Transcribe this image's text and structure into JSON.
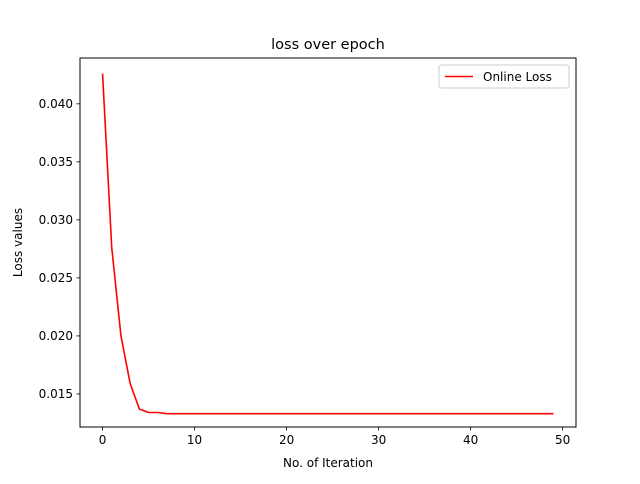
{
  "chart_data": {
    "type": "line",
    "title": "loss over epoch",
    "xlabel": "No. of Iteration",
    "ylabel": "Loss values",
    "xlim": [
      -2.45,
      51.45
    ],
    "ylim": [
      0.01215,
      0.04395
    ],
    "xticks": [
      0,
      10,
      20,
      30,
      40,
      50
    ],
    "xtick_labels": [
      "0",
      "10",
      "20",
      "30",
      "40",
      "50"
    ],
    "yticks": [
      0.015,
      0.02,
      0.025,
      0.03,
      0.035,
      0.04
    ],
    "ytick_labels": [
      "0.015",
      "0.020",
      "0.025",
      "0.030",
      "0.035",
      "0.040"
    ],
    "grid": false,
    "legend_position": "top-right",
    "series": [
      {
        "name": "Online Loss",
        "color": "#ff0000",
        "x": [
          0,
          1,
          2,
          3,
          4,
          5,
          6,
          7,
          8,
          9,
          10,
          11,
          12,
          13,
          14,
          15,
          16,
          17,
          18,
          19,
          20,
          21,
          22,
          23,
          24,
          25,
          26,
          27,
          28,
          29,
          30,
          31,
          32,
          33,
          34,
          35,
          36,
          37,
          38,
          39,
          40,
          41,
          42,
          43,
          44,
          45,
          46,
          47,
          48,
          49
        ],
        "y": [
          0.0426,
          0.0276,
          0.02,
          0.0159,
          0.0137,
          0.0134,
          0.0134,
          0.0133,
          0.0133,
          0.0133,
          0.0133,
          0.0133,
          0.0133,
          0.0133,
          0.0133,
          0.0133,
          0.0133,
          0.0133,
          0.0133,
          0.0133,
          0.0133,
          0.0133,
          0.0133,
          0.0133,
          0.0133,
          0.0133,
          0.0133,
          0.0133,
          0.0133,
          0.0133,
          0.0133,
          0.0133,
          0.0133,
          0.0133,
          0.0133,
          0.0133,
          0.0133,
          0.0133,
          0.0133,
          0.0133,
          0.0133,
          0.0133,
          0.0133,
          0.0133,
          0.0133,
          0.0133,
          0.0133,
          0.0133,
          0.0133,
          0.0133
        ]
      }
    ]
  }
}
